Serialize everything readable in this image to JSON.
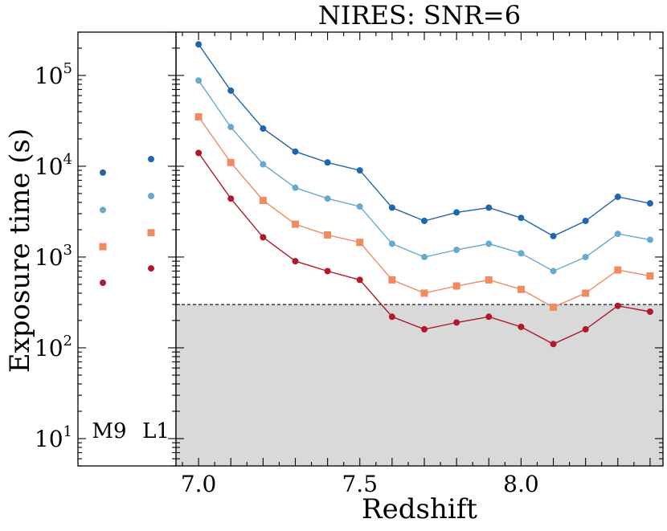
{
  "chart_data": {
    "type": "line",
    "title": "NIRES: SNR=6",
    "xlabel": "Redshift",
    "ylabel": "Exposure time (s)",
    "yscale": "log",
    "ylim": [
      5,
      300000
    ],
    "xlim": [
      6.93,
      8.44
    ],
    "xticks": [
      7.0,
      7.5,
      8.0
    ],
    "xtick_labels": [
      "7.0",
      "7.5",
      "8.0"
    ],
    "yticks": [
      10,
      100,
      1000,
      10000,
      100000
    ],
    "ytick_labels": [
      {
        "base": "10",
        "exp": "1"
      },
      {
        "base": "10",
        "exp": "2"
      },
      {
        "base": "10",
        "exp": "3"
      },
      {
        "base": "10",
        "exp": "4"
      },
      {
        "base": "10",
        "exp": "5"
      }
    ],
    "threshold": {
      "value": 300,
      "style": "dashed",
      "shade_below": true
    },
    "x": [
      7.0,
      7.1,
      7.2,
      7.3,
      7.4,
      7.5,
      7.6,
      7.7,
      7.8,
      7.9,
      8.0,
      8.1,
      8.2,
      8.3,
      8.4
    ],
    "series": [
      {
        "name": "series-1",
        "color": "#2166ac",
        "marker": "circle",
        "values": [
          220000,
          68000,
          26000,
          14500,
          11000,
          9000,
          3500,
          2500,
          3100,
          3500,
          2700,
          1700,
          2500,
          4600,
          3900
        ]
      },
      {
        "name": "series-2",
        "color": "#67a9cf",
        "marker": "circle",
        "values": [
          88000,
          27000,
          10500,
          5800,
          4400,
          3600,
          1400,
          1000,
          1200,
          1400,
          1100,
          700,
          1000,
          1800,
          1550
        ]
      },
      {
        "name": "series-3",
        "color": "#ef8a62",
        "marker": "square",
        "values": [
          35000,
          11000,
          4200,
          2300,
          1750,
          1450,
          560,
          400,
          480,
          560,
          440,
          280,
          400,
          720,
          620
        ]
      },
      {
        "name": "series-4",
        "color": "#b2182b",
        "marker": "circle",
        "values": [
          14000,
          4400,
          1650,
          900,
          700,
          560,
          220,
          160,
          190,
          220,
          170,
          110,
          160,
          290,
          250
        ]
      }
    ],
    "reference_panel": {
      "columns": [
        {
          "label": "M9",
          "values": [
            8500,
            3300,
            1300,
            520
          ]
        },
        {
          "label": "L1",
          "values": [
            12000,
            4700,
            1850,
            750
          ]
        }
      ]
    }
  }
}
